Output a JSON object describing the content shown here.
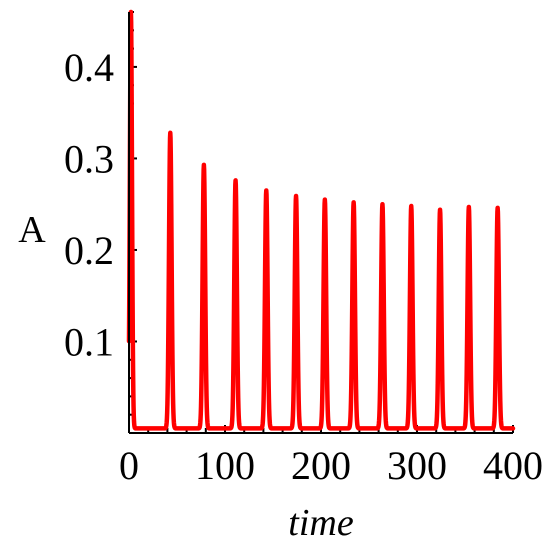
{
  "chart_data": {
    "type": "line",
    "xlabel": "time",
    "ylabel": "A",
    "xlim": [
      0,
      400
    ],
    "ylim": [
      0,
      0.46
    ],
    "x_ticks": [
      0,
      100,
      200,
      300,
      400
    ],
    "x_tick_labels": [
      "0",
      "100",
      "200",
      "300",
      "400"
    ],
    "y_ticks": [
      0.1,
      0.2,
      0.3,
      0.4
    ],
    "y_tick_labels": [
      "0.1",
      "0.2",
      "0.3",
      "0.4"
    ],
    "grid": false,
    "baseline": 0.005,
    "peaks": [
      {
        "time": 2,
        "A": 0.46
      },
      {
        "time": 43,
        "A": 0.328
      },
      {
        "time": 78,
        "A": 0.293
      },
      {
        "time": 111,
        "A": 0.276
      },
      {
        "time": 143,
        "A": 0.265
      },
      {
        "time": 174,
        "A": 0.259
      },
      {
        "time": 204,
        "A": 0.255
      },
      {
        "time": 234,
        "A": 0.252
      },
      {
        "time": 264,
        "A": 0.25
      },
      {
        "time": 294,
        "A": 0.248
      },
      {
        "time": 324,
        "A": 0.244
      },
      {
        "time": 354,
        "A": 0.247
      },
      {
        "time": 384,
        "A": 0.246
      }
    ],
    "series": [
      {
        "color": "#ff0000"
      }
    ]
  }
}
